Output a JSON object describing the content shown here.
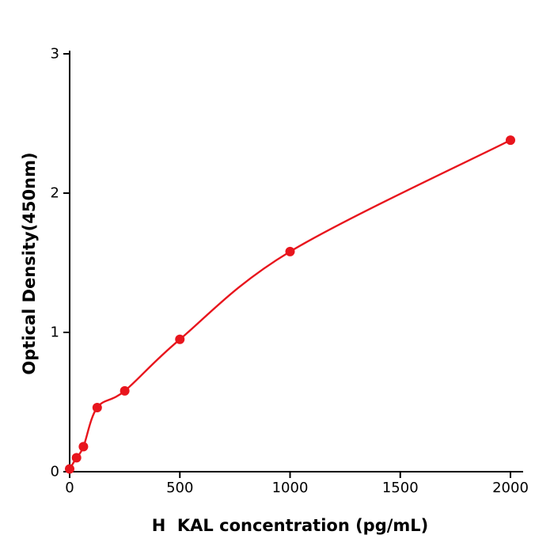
{
  "chart_data": {
    "type": "scatter",
    "title": "",
    "xlabel": "H  KAL concentration (pg/mL)",
    "ylabel": "Optical Density(450nm)",
    "x": [
      0,
      31.2,
      62.5,
      125,
      250,
      500,
      1000,
      2000
    ],
    "y": [
      0.02,
      0.1,
      0.18,
      0.46,
      0.58,
      0.95,
      1.58,
      2.38
    ],
    "x_ticks": [
      0,
      500,
      1000,
      1500,
      2000
    ],
    "y_ticks": [
      0,
      1,
      2,
      3
    ],
    "xlim": [
      0,
      2050
    ],
    "ylim": [
      0,
      3
    ],
    "grid": false,
    "legend": "none",
    "point_color": "#e8151d",
    "line_color": "#e8151d",
    "axis_color": "#000000",
    "background_color": "#ffffff"
  }
}
